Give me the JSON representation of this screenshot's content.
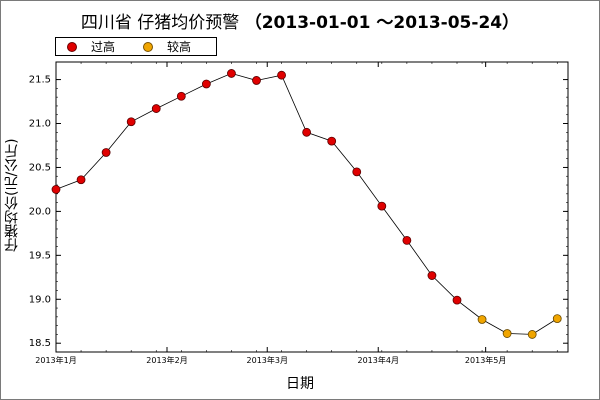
{
  "title": {
    "main": "四川省 仔猪均价预警",
    "range": "（2013-01-01 ～2013-05-24）"
  },
  "legend": [
    {
      "label": "过高",
      "color": "#e00000"
    },
    {
      "label": "较高",
      "color": "#f0a500"
    }
  ],
  "chart_data": {
    "type": "line",
    "title": "四川省 仔猪均价预警 （2013-01-01 ～2013-05-24）",
    "xlabel": "日期",
    "ylabel": "仔猪均价(元/公斤)",
    "ylim": [
      18.4,
      21.7
    ],
    "yticks": [
      18.5,
      19.0,
      19.5,
      20.0,
      20.5,
      21.0,
      21.5
    ],
    "xlim": [
      "2013-01-01",
      "2013-05-24"
    ],
    "xticks": [
      {
        "date": "2013-01-01",
        "label": "2013年1月"
      },
      {
        "date": "2013-02-01",
        "label": "2013年2月"
      },
      {
        "date": "2013-03-01",
        "label": "2013年3月"
      },
      {
        "date": "2013-04-01",
        "label": "2013年4月"
      },
      {
        "date": "2013-05-01",
        "label": "2013年5月"
      }
    ],
    "grid": false,
    "line_color": "#000000",
    "points": [
      {
        "date": "2013-01-01",
        "value": 20.25,
        "level": "过高"
      },
      {
        "date": "2013-01-08",
        "value": 20.36,
        "level": "过高"
      },
      {
        "date": "2013-01-15",
        "value": 20.67,
        "level": "过高"
      },
      {
        "date": "2013-01-22",
        "value": 21.02,
        "level": "过高"
      },
      {
        "date": "2013-01-29",
        "value": 21.17,
        "level": "过高"
      },
      {
        "date": "2013-02-05",
        "value": 21.31,
        "level": "过高"
      },
      {
        "date": "2013-02-12",
        "value": 21.45,
        "level": "过高"
      },
      {
        "date": "2013-02-19",
        "value": 21.57,
        "level": "过高"
      },
      {
        "date": "2013-02-26",
        "value": 21.49,
        "level": "过高"
      },
      {
        "date": "2013-03-05",
        "value": 21.55,
        "level": "过高"
      },
      {
        "date": "2013-03-12",
        "value": 20.9,
        "level": "过高"
      },
      {
        "date": "2013-03-19",
        "value": 20.8,
        "level": "过高"
      },
      {
        "date": "2013-03-26",
        "value": 20.45,
        "level": "过高"
      },
      {
        "date": "2013-04-02",
        "value": 20.06,
        "level": "过高"
      },
      {
        "date": "2013-04-09",
        "value": 19.67,
        "level": "过高"
      },
      {
        "date": "2013-04-16",
        "value": 19.27,
        "level": "过高"
      },
      {
        "date": "2013-04-23",
        "value": 18.99,
        "level": "过高"
      },
      {
        "date": "2013-04-30",
        "value": 18.77,
        "level": "较高"
      },
      {
        "date": "2013-05-07",
        "value": 18.61,
        "level": "较高"
      },
      {
        "date": "2013-05-14",
        "value": 18.6,
        "level": "较高"
      },
      {
        "date": "2013-05-21",
        "value": 18.78,
        "level": "较高"
      }
    ],
    "level_colors": {
      "过高": "#e00000",
      "较高": "#f0a500"
    }
  }
}
